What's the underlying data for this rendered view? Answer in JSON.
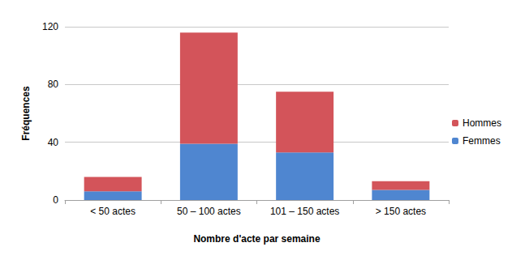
{
  "chart_data": {
    "type": "bar",
    "stacked": true,
    "x_label": "Nombre d'acte par semaine",
    "y_label": "Fréquences",
    "categories": [
      "< 50 actes",
      "50 – 100 actes",
      "101 – 150 actes",
      "> 150 actes"
    ],
    "series": [
      {
        "name": "Femmes",
        "color": "#4f86d0",
        "values": [
          6,
          39,
          33,
          7
        ]
      },
      {
        "name": "Hommes",
        "color": "#d3545a",
        "values": [
          10,
          77,
          42,
          6
        ]
      }
    ],
    "ylim": [
      0,
      120
    ],
    "yticks": [
      0,
      40,
      80,
      120
    ],
    "grid": true,
    "legend": "right"
  }
}
